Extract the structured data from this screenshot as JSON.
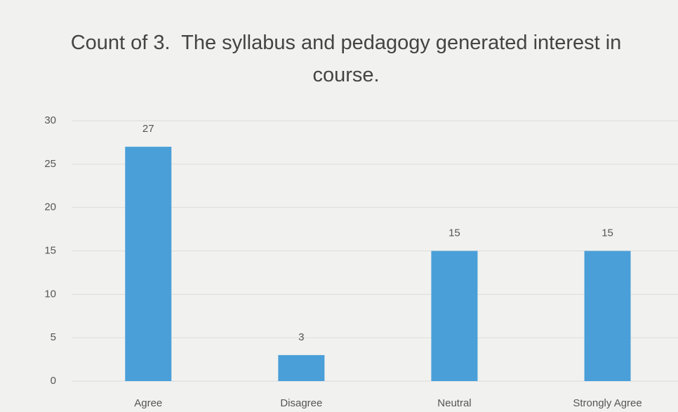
{
  "chart_data": {
    "type": "bar",
    "title": "Count of 3.  The syllabus and pedagogy generated interest in course.",
    "categories": [
      "Agree",
      "Disagree",
      "Neutral",
      "Strongly Agree"
    ],
    "values": [
      27,
      3,
      15,
      15
    ],
    "color": "#4a9fd8",
    "ylim": [
      0,
      30
    ],
    "yticks": [
      0,
      5,
      10,
      15,
      20,
      25,
      30
    ],
    "grid": true
  }
}
